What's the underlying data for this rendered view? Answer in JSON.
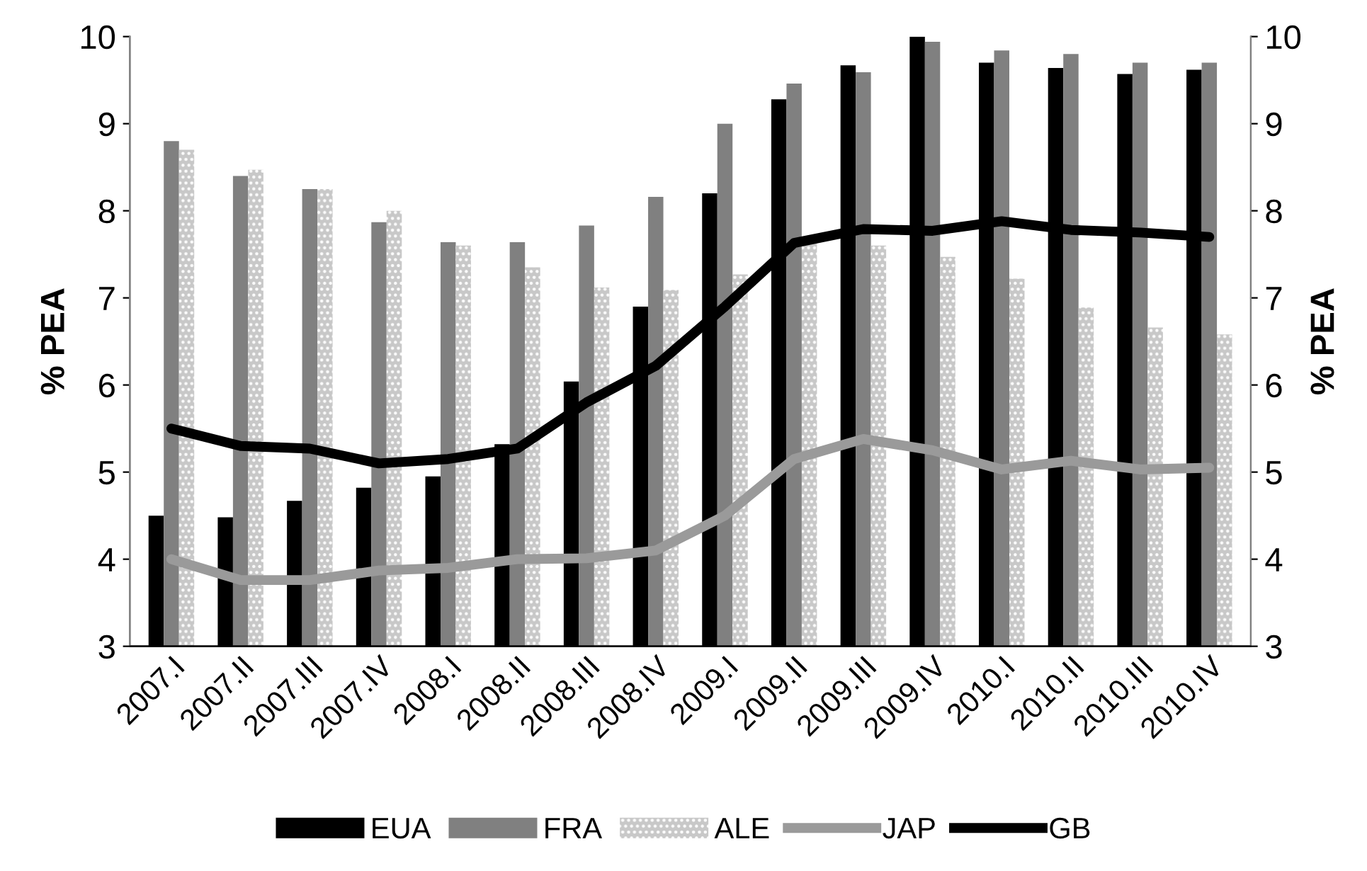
{
  "chart_data": {
    "type": "bar",
    "ylabel": "% PEA",
    "y2label": "% PEA",
    "categories": [
      "2007.I",
      "2007.II",
      "2007.III",
      "2007.IV",
      "2008.I",
      "2008.II",
      "2008.III",
      "2008.IV",
      "2009.I",
      "2009.II",
      "2009.III",
      "2009.IV",
      "2010.I",
      "2010.II",
      "2010.III",
      "2010.IV"
    ],
    "series": [
      {
        "name": "EUA",
        "color": "#000000",
        "values": [
          4.5,
          4.48,
          4.67,
          4.82,
          4.95,
          5.32,
          6.04,
          6.9,
          8.2,
          9.28,
          9.67,
          10.0,
          9.7,
          9.64,
          9.57,
          9.62
        ]
      },
      {
        "name": "FRA",
        "color": "#808080",
        "values": [
          8.8,
          8.4,
          8.25,
          7.87,
          7.64,
          7.64,
          7.83,
          8.16,
          9.0,
          9.46,
          9.59,
          9.94,
          9.84,
          9.8,
          9.7,
          9.7
        ]
      },
      {
        "name": "ALE",
        "color": "#c8c8c8",
        "values": [
          8.7,
          8.47,
          8.25,
          8.0,
          7.6,
          7.35,
          7.12,
          7.09,
          7.27,
          7.63,
          7.6,
          7.47,
          7.22,
          6.89,
          6.66,
          6.58
        ]
      },
      {
        "name": "JAP",
        "type": "line",
        "color": "#9a9a9a",
        "values": [
          4.0,
          3.76,
          3.76,
          3.87,
          3.9,
          4.0,
          4.01,
          4.1,
          4.5,
          5.15,
          5.38,
          5.25,
          5.03,
          5.13,
          5.03,
          5.05
        ]
      },
      {
        "name": "GB",
        "type": "line",
        "color": "#000000",
        "values": [
          5.5,
          5.3,
          5.27,
          5.1,
          5.15,
          5.27,
          5.8,
          6.22,
          6.9,
          7.63,
          7.79,
          7.77,
          7.88,
          7.78,
          7.75,
          7.7
        ]
      }
    ],
    "ylim": [
      3,
      10
    ],
    "yticks": [
      3,
      4,
      5,
      6,
      7,
      8,
      9,
      10
    ],
    "y2lim": [
      3,
      10
    ],
    "y2ticks": [
      3,
      4,
      5,
      6,
      7,
      8,
      9,
      10
    ],
    "grid": false,
    "legend": "bottom"
  }
}
